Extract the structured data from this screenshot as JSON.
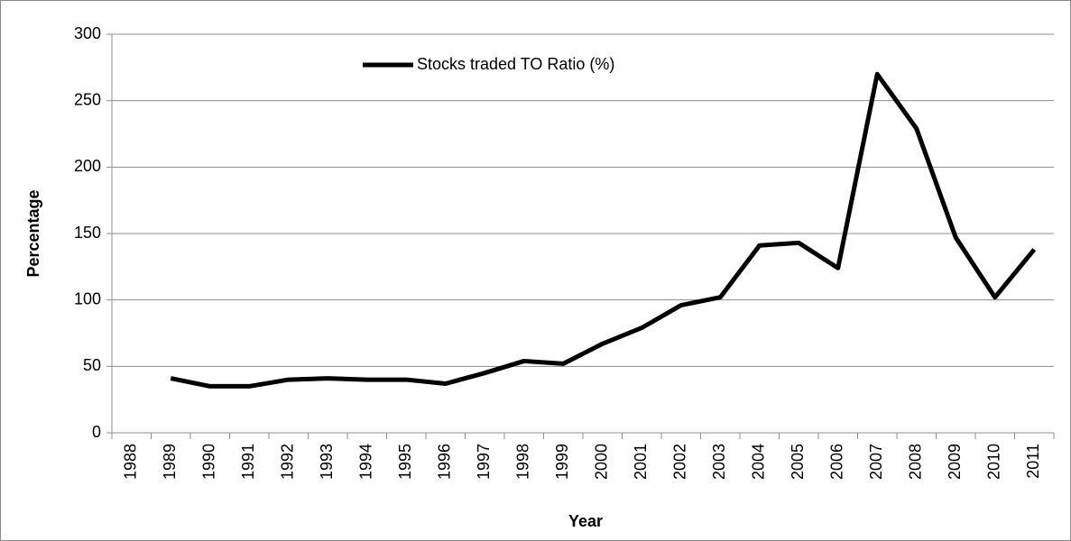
{
  "chart_data": {
    "type": "line",
    "xlabel": "Year",
    "ylabel": "Percentage",
    "categories": [
      "1988",
      "1989",
      "1990",
      "1991",
      "1992",
      "1993",
      "1994",
      "1995",
      "1996",
      "1997",
      "1998",
      "1999",
      "2000",
      "2001",
      "2002",
      "2003",
      "2004",
      "2005",
      "2006",
      "2007",
      "2008",
      "2009",
      "2010",
      "2011"
    ],
    "series": [
      {
        "name": "Stocks traded TO Ratio (%)",
        "color": "#000000",
        "values": [
          null,
          41,
          35,
          35,
          40,
          41,
          40,
          40,
          37,
          45,
          54,
          52,
          67,
          79,
          96,
          102,
          141,
          143,
          124,
          270,
          229,
          147,
          102,
          138
        ]
      }
    ],
    "ylim": [
      0,
      300
    ],
    "yticks": [
      0,
      50,
      100,
      150,
      200,
      250,
      300
    ],
    "grid": true,
    "legend": "top"
  }
}
